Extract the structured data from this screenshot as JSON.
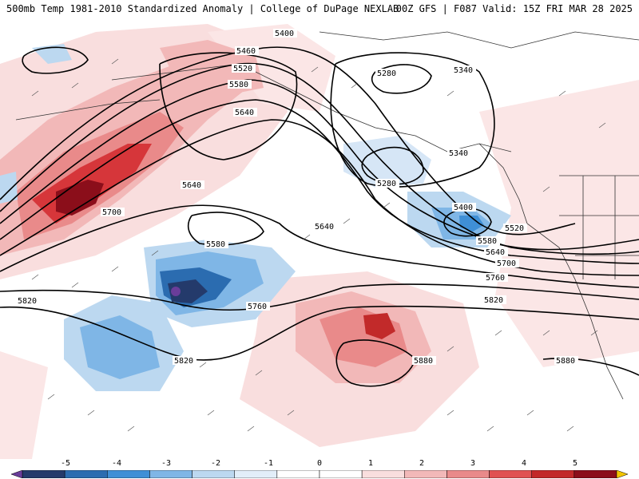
{
  "header": {
    "title_left": "500mb Temp 1981-2010 Standardized Anomaly | College of DuPage NEXLAB",
    "title_right": "00Z GFS | F087 Valid: 15Z FRI MAR 28 2025"
  },
  "contour_labels": [
    "5400",
    "5460",
    "5520",
    "5580",
    "5640",
    "5640",
    "5700",
    "5580",
    "5640",
    "5760",
    "5820",
    "5820",
    "5280",
    "5340",
    "5340",
    "5280",
    "5400",
    "5520",
    "5580",
    "5640",
    "5700",
    "5760",
    "5820",
    "5880",
    "5880"
  ],
  "colorbar": {
    "ticks": [
      "-5",
      "-4",
      "-3",
      "-2",
      "-1",
      "0",
      "1",
      "2",
      "3",
      "4",
      "5"
    ],
    "colors": [
      "#6a3d9a",
      "#243a6b",
      "#2b6cb0",
      "#3f8fd6",
      "#7fb6e6",
      "#bcd8f0",
      "#e2eef9",
      "#ffffff",
      "#ffffff",
      "#f9dede",
      "#f2b8b8",
      "#e98a8a",
      "#e05252",
      "#c22a2a",
      "#8b0e1a",
      "#f2c500"
    ]
  }
}
